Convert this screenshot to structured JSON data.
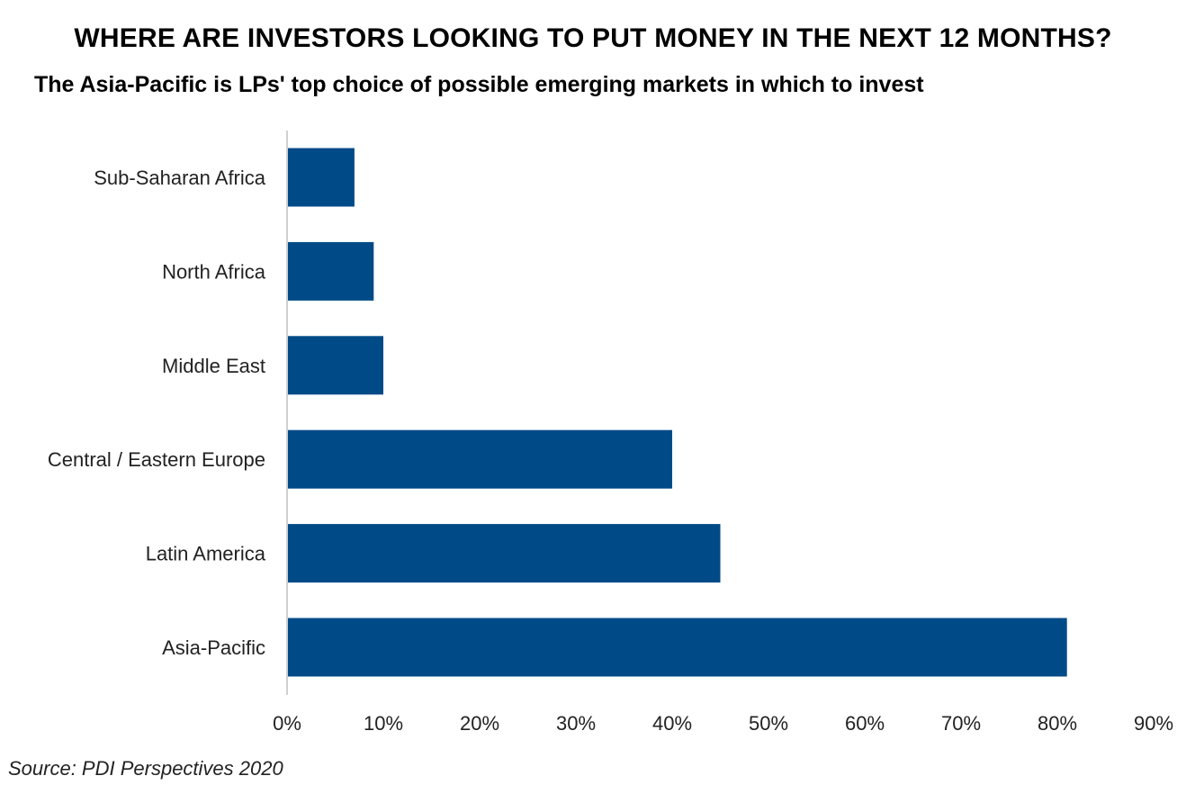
{
  "chart_data": {
    "type": "bar",
    "orientation": "horizontal",
    "title": "WHERE ARE INVESTORS LOOKING TO PUT MONEY IN THE NEXT 12 MONTHS?",
    "subtitle": "The Asia-Pacific is LPs' top choice of possible emerging markets in which to invest",
    "categories": [
      "Sub-Saharan Africa",
      "North Africa",
      "Middle East",
      "Central / Eastern Europe",
      "Latin America",
      "Asia-Pacific"
    ],
    "values": [
      7,
      9,
      10,
      40,
      45,
      81
    ],
    "xlim": [
      0,
      90
    ],
    "x_ticks": [
      0,
      10,
      20,
      30,
      40,
      50,
      60,
      70,
      80,
      90
    ],
    "tick_suffix": "%",
    "bar_color": "#004a87",
    "grid": false,
    "legend": "none"
  },
  "source": "Source: PDI Perspectives 2020"
}
